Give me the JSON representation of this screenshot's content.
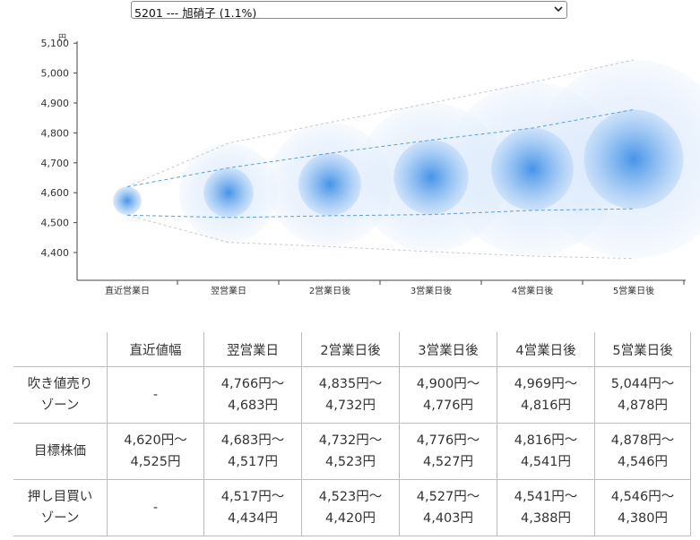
{
  "selector": {
    "selected": "5201 --- 旭硝子 (1.1%)"
  },
  "chart_data": {
    "type": "bubble",
    "y_unit": "円",
    "ylim": [
      4380,
      5100
    ],
    "yticks": [
      4400,
      4500,
      4600,
      4700,
      4800,
      4900,
      5000,
      5100
    ],
    "ytick_labels": [
      "4,400",
      "4,500",
      "4,600",
      "4,700",
      "4,800",
      "4,900",
      "5,000",
      "5,100"
    ],
    "categories": [
      "直近営業日",
      "翌営業日",
      "2営業日後",
      "3営業日後",
      "4営業日後",
      "5営業日後"
    ],
    "center": [
      4573,
      4600,
      4628,
      4652,
      4679,
      4712
    ],
    "inner_upper": [
      4620,
      4683,
      4732,
      4776,
      4816,
      4878
    ],
    "inner_lower": [
      4525,
      4517,
      4523,
      4527,
      4541,
      4546
    ],
    "outer_upper": [
      4620,
      4766,
      4835,
      4900,
      4969,
      5044
    ],
    "outer_lower": [
      4525,
      4434,
      4420,
      4403,
      4388,
      4380
    ]
  },
  "table": {
    "headers": [
      "",
      "直近値幅",
      "翌営業日",
      "2営業日後",
      "3営業日後",
      "4営業日後",
      "5営業日後"
    ],
    "rows": [
      {
        "label": [
          "吹き値売り",
          "ゾーン"
        ],
        "cells": [
          [
            "-"
          ],
          [
            "4,766円〜",
            "4,683円"
          ],
          [
            "4,835円〜",
            "4,732円"
          ],
          [
            "4,900円〜",
            "4,776円"
          ],
          [
            "4,969円〜",
            "4,816円"
          ],
          [
            "5,044円〜",
            "4,878円"
          ]
        ]
      },
      {
        "label": [
          "目標株価"
        ],
        "cells": [
          [
            "4,620円〜",
            "4,525円"
          ],
          [
            "4,683円〜",
            "4,517円"
          ],
          [
            "4,732円〜",
            "4,523円"
          ],
          [
            "4,776円〜",
            "4,527円"
          ],
          [
            "4,816円〜",
            "4,541円"
          ],
          [
            "4,878円〜",
            "4,546円"
          ]
        ]
      },
      {
        "label": [
          "押し目買い",
          "ゾーン"
        ],
        "cells": [
          [
            "-"
          ],
          [
            "4,517円〜",
            "4,434円"
          ],
          [
            "4,523円〜",
            "4,420円"
          ],
          [
            "4,527円〜",
            "4,403円"
          ],
          [
            "4,541円〜",
            "4,388円"
          ],
          [
            "4,546円〜",
            "4,380円"
          ]
        ]
      }
    ]
  }
}
